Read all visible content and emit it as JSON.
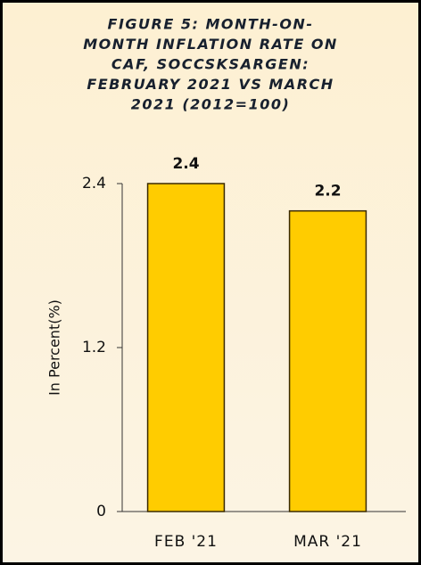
{
  "chart_data": {
    "type": "bar",
    "title": [
      "FIGURE 5: MONTH-ON-",
      "MONTH INFLATION RATE ON",
      "CAF, SOCCSKSARGEN:",
      "FEBRUARY 2021 VS MARCH",
      "2021 (2012=100)"
    ],
    "y_label": "In Percent(%)",
    "categories": [
      "FEB '21",
      "MAR '21"
    ],
    "values": [
      2.4,
      2.2
    ],
    "color": "#ffcc00",
    "ylim": [
      0,
      2.4
    ],
    "yticks": [
      0,
      1.2,
      2.4
    ],
    "grid": false
  }
}
